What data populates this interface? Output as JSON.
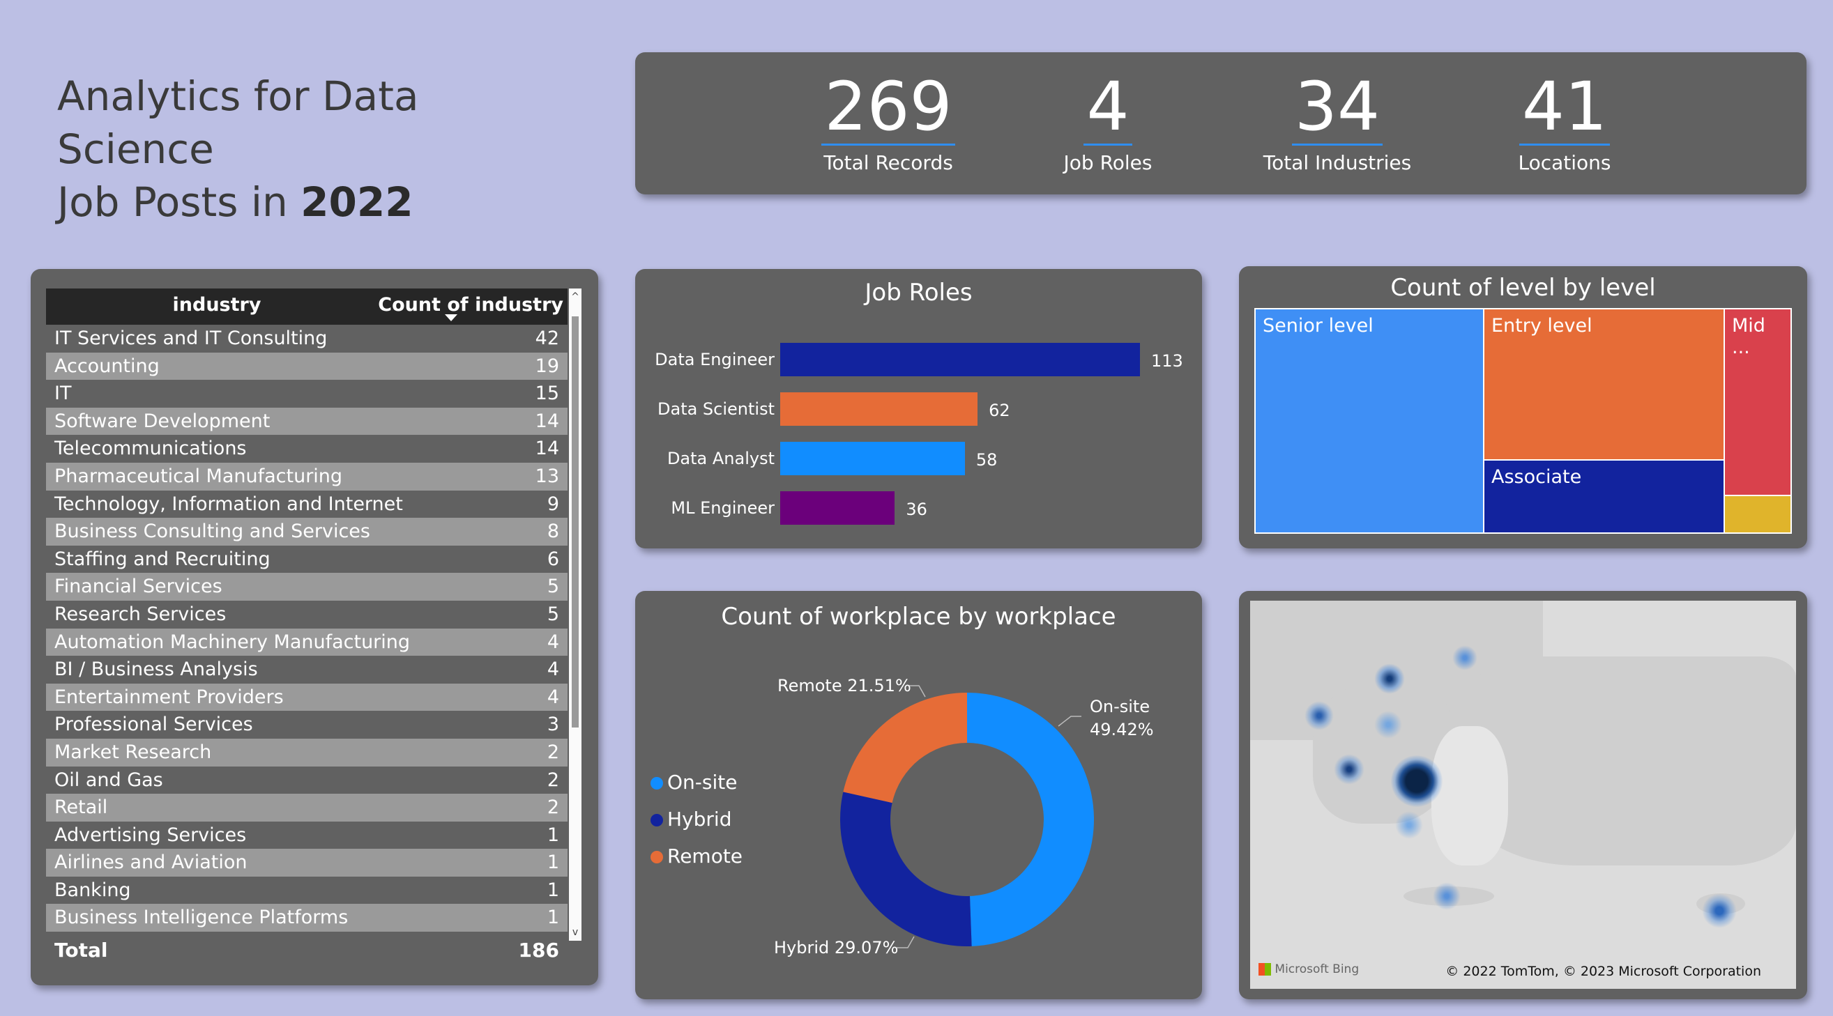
{
  "header": {
    "title_line1": "Analytics for Data Science",
    "title_line2_prefix": "Job Posts in ",
    "title_year": "2022"
  },
  "kpis": [
    {
      "value": "269",
      "label": "Total Records"
    },
    {
      "value": "4",
      "label": "Job Roles"
    },
    {
      "value": "34",
      "label": "Total Industries"
    },
    {
      "value": "41",
      "label": "Locations"
    }
  ],
  "industry_table": {
    "col_industry": "industry",
    "col_count": "Count of industry",
    "rows": [
      {
        "name": "IT Services and IT Consulting",
        "count": "42"
      },
      {
        "name": "Accounting",
        "count": "19"
      },
      {
        "name": "IT",
        "count": "15"
      },
      {
        "name": "Software Development",
        "count": "14"
      },
      {
        "name": "Telecommunications",
        "count": "14"
      },
      {
        "name": "Pharmaceutical Manufacturing",
        "count": "13"
      },
      {
        "name": "Technology, Information and Internet",
        "count": "9"
      },
      {
        "name": "Business Consulting and Services",
        "count": "8"
      },
      {
        "name": "Staffing and Recruiting",
        "count": "6"
      },
      {
        "name": "Financial Services",
        "count": "5"
      },
      {
        "name": "Research Services",
        "count": "5"
      },
      {
        "name": "Automation Machinery Manufacturing",
        "count": "4"
      },
      {
        "name": "BI / Business Analysis",
        "count": "4"
      },
      {
        "name": "Entertainment Providers",
        "count": "4"
      },
      {
        "name": "Professional Services",
        "count": "3"
      },
      {
        "name": "Market Research",
        "count": "2"
      },
      {
        "name": "Oil and Gas",
        "count": "2"
      },
      {
        "name": "Retail",
        "count": "2"
      },
      {
        "name": "Advertising Services",
        "count": "1"
      },
      {
        "name": "Airlines and Aviation",
        "count": "1"
      },
      {
        "name": "Banking",
        "count": "1"
      },
      {
        "name": "Business Intelligence Platforms",
        "count": "1"
      }
    ],
    "total_label": "Total",
    "total_value": "186"
  },
  "job_roles": {
    "title": "Job Roles",
    "roles": [
      {
        "label": "Data Engineer",
        "value": 113,
        "color": "#12239e"
      },
      {
        "label": "Data Scientist",
        "value": 62,
        "color": "#e66c37"
      },
      {
        "label": "Data Analyst",
        "value": 58,
        "color": "#118dff"
      },
      {
        "label": "ML Engineer",
        "value": 36,
        "color": "#6b007b"
      }
    ]
  },
  "levels": {
    "title": "Count of level by level",
    "items": [
      {
        "label": "Senior level",
        "color": "#3f8ff5"
      },
      {
        "label": "Entry level",
        "color": "#e66c37"
      },
      {
        "label": "Associate",
        "color": "#12239e"
      },
      {
        "label": "Mid ...",
        "color": "#d9414c"
      },
      {
        "label": "",
        "color": "#e0b42b"
      }
    ]
  },
  "workplace": {
    "title": "Count of workplace by workplace",
    "legend": [
      {
        "label": "On-site",
        "color": "#118dff"
      },
      {
        "label": "Hybrid",
        "color": "#12239e"
      },
      {
        "label": "Remote",
        "color": "#e66c37"
      }
    ],
    "labels": {
      "onsite_name": "On-site",
      "onsite_pct": "49.42%",
      "remote": "Remote 21.51%",
      "hybrid": "Hybrid 29.07%"
    }
  },
  "chart_data": [
    {
      "type": "bar",
      "title": "Job Roles",
      "categories": [
        "Data Engineer",
        "Data Scientist",
        "Data Analyst",
        "ML Engineer"
      ],
      "values": [
        113,
        62,
        58,
        36
      ],
      "orientation": "horizontal",
      "data_labels": true
    },
    {
      "type": "pie",
      "title": "Count of workplace by workplace",
      "donut": true,
      "categories": [
        "On-site",
        "Hybrid",
        "Remote"
      ],
      "values": [
        49.42,
        29.07,
        21.51
      ],
      "unit": "%",
      "legend": "left"
    }
  ],
  "map": {
    "bing_label": "Microsoft Bing",
    "copyright": "© 2022 TomTom, © 2023 Microsoft Corporation"
  },
  "colors": {
    "background": "#bcbfe4",
    "card": "#616161",
    "accent": "#118dff"
  }
}
